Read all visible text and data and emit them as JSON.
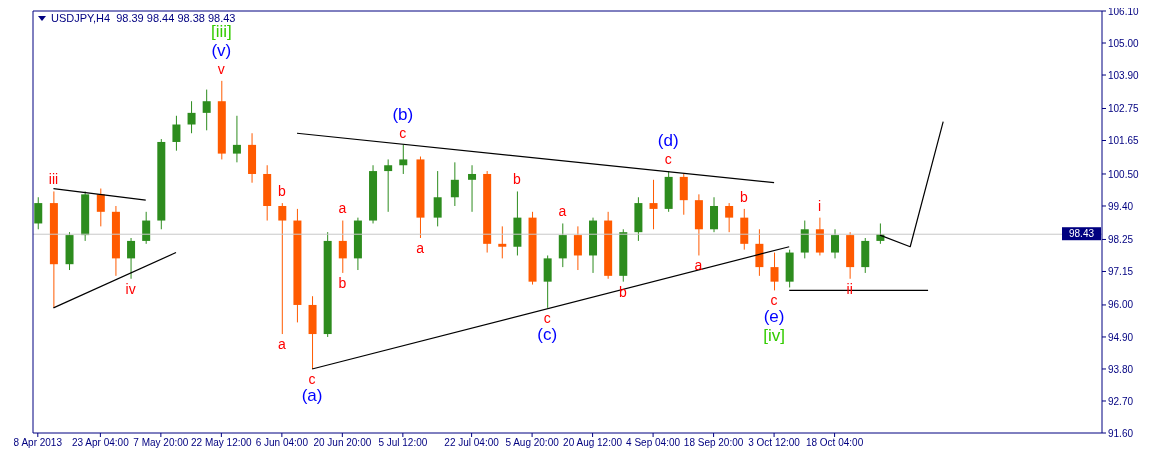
{
  "chart_data": {
    "type": "candlestick",
    "title": "USDJPY,H4  98.39 98.44 98.38 98.43",
    "x": [
      "2013-04-08T00:00",
      "2013-04-11T19:00",
      "2013-04-15T14:00",
      "2013-04-19T09:00",
      "2013-04-23T04:00",
      "2013-04-26T20:00",
      "2013-04-30T12:00",
      "2013-05-04T04:00",
      "2013-05-07T20:00",
      "2013-05-11T12:00",
      "2013-05-15T04:00",
      "2013-05-18T20:00",
      "2013-05-22T12:00",
      "2013-05-26T04:00",
      "2013-05-29T20:00",
      "2013-06-02T12:00",
      "2013-06-06T04:00",
      "2013-06-09T20:00",
      "2013-06-13T12:00",
      "2013-06-17T04:00",
      "2013-06-20T20:00",
      "2013-06-24T12:00",
      "2013-06-28T04:00",
      "2013-07-01T20:00",
      "2013-07-05T12:00",
      "2013-07-09T16:00",
      "2013-07-13T20:00",
      "2013-07-18T00:00",
      "2013-07-22T04:00",
      "2013-07-25T20:00",
      "2013-07-29T12:00",
      "2013-08-02T04:00",
      "2013-08-05T20:00",
      "2013-08-09T12:00",
      "2013-08-13T04:00",
      "2013-08-16T20:00",
      "2013-08-20T12:00",
      "2013-08-24T04:00",
      "2013-08-27T20:00",
      "2013-08-31T12:00",
      "2013-09-04T04:00",
      "2013-09-07T20:00",
      "2013-09-11T12:00",
      "2013-09-15T04:00",
      "2013-09-18T20:00",
      "2013-09-22T12:00",
      "2013-09-26T04:00",
      "2013-09-29T20:00",
      "2013-10-03T12:00",
      "2013-10-07T04:00",
      "2013-10-10T20:00",
      "2013-10-14T12:00",
      "2013-10-18T04:00",
      "2013-10-21T20:00",
      "2013-10-25T12:00",
      "2013-10-29T04:00"
    ],
    "ohlc": [
      [
        98.8,
        99.7,
        98.6,
        99.5
      ],
      [
        99.5,
        99.9,
        95.9,
        97.4
      ],
      [
        97.4,
        98.5,
        97.2,
        98.4
      ],
      [
        98.4,
        99.9,
        98.2,
        99.8
      ],
      [
        99.8,
        100.0,
        98.7,
        99.2
      ],
      [
        99.2,
        99.4,
        97.0,
        97.6
      ],
      [
        97.6,
        98.3,
        96.9,
        98.2
      ],
      [
        98.2,
        99.2,
        98.1,
        98.9
      ],
      [
        98.9,
        101.7,
        98.6,
        101.6
      ],
      [
        101.6,
        102.5,
        101.3,
        102.2
      ],
      [
        102.2,
        103.0,
        101.9,
        102.6
      ],
      [
        102.6,
        103.4,
        102.0,
        103.0
      ],
      [
        103.0,
        103.7,
        101.0,
        101.2
      ],
      [
        101.2,
        102.5,
        100.9,
        101.5
      ],
      [
        101.5,
        101.9,
        100.2,
        100.5
      ],
      [
        100.5,
        100.8,
        98.9,
        99.4
      ],
      [
        99.4,
        99.5,
        95.0,
        98.9
      ],
      [
        98.9,
        99.3,
        95.4,
        96.0
      ],
      [
        96.0,
        96.3,
        93.8,
        95.0
      ],
      [
        95.0,
        98.5,
        94.9,
        98.2
      ],
      [
        98.2,
        98.9,
        97.1,
        97.6
      ],
      [
        97.6,
        99.0,
        97.2,
        98.9
      ],
      [
        98.9,
        100.8,
        98.8,
        100.6
      ],
      [
        100.6,
        101.0,
        99.2,
        100.8
      ],
      [
        100.8,
        101.5,
        100.5,
        101.0
      ],
      [
        101.0,
        101.1,
        98.3,
        99.0
      ],
      [
        99.0,
        100.6,
        98.7,
        99.7
      ],
      [
        99.7,
        100.9,
        99.4,
        100.3
      ],
      [
        100.3,
        100.8,
        99.2,
        100.5
      ],
      [
        100.5,
        100.6,
        97.8,
        98.1
      ],
      [
        98.1,
        98.7,
        97.6,
        98.0
      ],
      [
        98.0,
        99.9,
        97.7,
        99.0
      ],
      [
        99.0,
        99.2,
        96.7,
        96.8
      ],
      [
        96.8,
        97.7,
        95.9,
        97.6
      ],
      [
        97.6,
        98.8,
        97.3,
        98.4
      ],
      [
        98.4,
        98.7,
        97.2,
        97.7
      ],
      [
        97.7,
        99.0,
        97.1,
        98.9
      ],
      [
        98.9,
        99.2,
        96.9,
        97.0
      ],
      [
        97.0,
        98.6,
        96.8,
        98.5
      ],
      [
        98.5,
        99.7,
        98.2,
        99.5
      ],
      [
        99.5,
        100.3,
        98.6,
        99.3
      ],
      [
        99.3,
        100.6,
        99.2,
        100.4
      ],
      [
        100.4,
        100.5,
        99.1,
        99.6
      ],
      [
        99.6,
        99.8,
        97.7,
        98.6
      ],
      [
        98.6,
        99.7,
        98.5,
        99.4
      ],
      [
        99.4,
        99.5,
        98.5,
        99.0
      ],
      [
        99.0,
        99.3,
        97.9,
        98.1
      ],
      [
        98.1,
        98.6,
        97.0,
        97.3
      ],
      [
        97.3,
        97.8,
        96.5,
        96.8
      ],
      [
        96.8,
        97.9,
        96.6,
        97.8
      ],
      [
        97.8,
        98.9,
        97.6,
        98.6
      ],
      [
        98.6,
        99.0,
        97.7,
        97.8
      ],
      [
        97.8,
        98.6,
        97.6,
        98.4
      ],
      [
        98.4,
        98.5,
        96.9,
        97.3
      ],
      [
        97.3,
        98.3,
        97.1,
        98.2
      ],
      [
        98.2,
        98.8,
        98.1,
        98.43
      ]
    ],
    "colors": [
      "#2d8c1e",
      "#ff5a00",
      "#2d8c1e",
      "#2d8c1e",
      "#ff5a00",
      "#ff5a00",
      "#2d8c1e",
      "#2d8c1e",
      "#2d8c1e",
      "#2d8c1e",
      "#2d8c1e",
      "#2d8c1e",
      "#ff5a00",
      "#2d8c1e",
      "#ff5a00",
      "#ff5a00",
      "#ff5a00",
      "#ff5a00",
      "#ff5a00",
      "#2d8c1e",
      "#ff5a00",
      "#2d8c1e",
      "#2d8c1e",
      "#2d8c1e",
      "#2d8c1e",
      "#ff5a00",
      "#2d8c1e",
      "#2d8c1e",
      "#2d8c1e",
      "#ff5a00",
      "#ff5a00",
      "#2d8c1e",
      "#ff5a00",
      "#2d8c1e",
      "#2d8c1e",
      "#ff5a00",
      "#2d8c1e",
      "#ff5a00",
      "#2d8c1e",
      "#2d8c1e",
      "#ff5a00",
      "#2d8c1e",
      "#ff5a00",
      "#ff5a00",
      "#2d8c1e",
      "#ff5a00",
      "#ff5a00",
      "#ff5a00",
      "#ff5a00",
      "#2d8c1e",
      "#2d8c1e",
      "#ff5a00",
      "#2d8c1e",
      "#ff5a00",
      "#2d8c1e",
      "#2d8c1e"
    ],
    "xlim": [
      "2013-04-06T20:00",
      "2013-12-22T00:00"
    ],
    "xticks": [
      {
        "value": "2013-04-08T00:00",
        "label": "8 Apr 2013"
      },
      {
        "value": "2013-04-23T04:00",
        "label": "23 Apr 04:00"
      },
      {
        "value": "2013-05-07T20:00",
        "label": "7 May 20:00"
      },
      {
        "value": "2013-05-22T12:00",
        "label": "22 May 12:00"
      },
      {
        "value": "2013-06-06T04:00",
        "label": "6 Jun 04:00"
      },
      {
        "value": "2013-06-20T20:00",
        "label": "20 Jun 20:00"
      },
      {
        "value": "2013-07-05T12:00",
        "label": "5 Jul 12:00"
      },
      {
        "value": "2013-07-22T04:00",
        "label": "22 Jul 04:00"
      },
      {
        "value": "2013-08-05T20:00",
        "label": "5 Aug 20:00"
      },
      {
        "value": "2013-08-20T12:00",
        "label": "20 Aug 12:00"
      },
      {
        "value": "2013-09-04T04:00",
        "label": "4 Sep 04:00"
      },
      {
        "value": "2013-09-18T20:00",
        "label": "18 Sep 20:00"
      },
      {
        "value": "2013-10-03T12:00",
        "label": "3 Oct 12:00"
      },
      {
        "value": "2013-10-18T04:00",
        "label": "18 Oct 04:00"
      }
    ],
    "ylim": [
      91.6,
      106.1
    ],
    "yticks": [
      {
        "value": 91.6,
        "label": "91.60"
      },
      {
        "value": 92.7,
        "label": "92.70"
      },
      {
        "value": 93.8,
        "label": "93.80"
      },
      {
        "value": 94.9,
        "label": "94.90"
      },
      {
        "value": 96,
        "label": "96.00"
      },
      {
        "value": 97.15,
        "label": "97.15"
      },
      {
        "value": 98.25,
        "label": "98.25"
      },
      {
        "value": 99.4,
        "label": "99.40"
      },
      {
        "value": 100.5,
        "label": "100.50"
      },
      {
        "value": 101.65,
        "label": "101.65"
      },
      {
        "value": 102.75,
        "label": "102.75"
      },
      {
        "value": 103.9,
        "label": "103.90"
      },
      {
        "value": 105,
        "label": "105.00"
      },
      {
        "value": 106.1,
        "label": "106.10"
      }
    ],
    "series": [
      {
        "type": "line",
        "color": "#000000",
        "x": [
          "2013-04-11T19:00",
          "2013-05-04T04:00"
        ],
        "values": [
          100.0,
          99.6
        ]
      },
      {
        "type": "line",
        "color": "#000000",
        "x": [
          "2013-04-11T19:00",
          "2013-05-11T12:00"
        ],
        "values": [
          95.9,
          97.8
        ]
      },
      {
        "type": "line",
        "color": "#000000",
        "x": [
          "2013-06-09T20:00",
          "2013-10-03T12:00"
        ],
        "values": [
          101.9,
          100.2
        ]
      },
      {
        "type": "line",
        "color": "#000000",
        "x": [
          "2013-06-13T12:00",
          "2013-10-07T04:00"
        ],
        "values": [
          93.8,
          98.0
        ]
      },
      {
        "type": "line",
        "color": "#000000",
        "x": [
          "2013-10-07T04:00",
          "2013-11-09T20:00"
        ],
        "values": [
          96.5,
          96.5
        ]
      },
      {
        "type": "line",
        "color": "#000000",
        "x": [
          "2013-10-29T04:00",
          "2013-11-05T12:00",
          "2013-11-13T12:00"
        ],
        "values": [
          98.4,
          98.0,
          102.3
        ]
      }
    ],
    "ref_lines": [
      {
        "axis": "y",
        "value": 98.43,
        "label": "98.43",
        "color": "#c8c8c8"
      }
    ],
    "annotations": [
      {
        "text": "iii",
        "x": "2013-04-11T19:00",
        "y": 99.9
      },
      {
        "text": "iv",
        "x": "2013-04-30T12:00",
        "y": 96.9
      },
      {
        "text": "v",
        "x": "2013-05-22T12:00",
        "y": 103.7
      },
      {
        "text": "(v)",
        "x": "2013-05-22T12:00",
        "y": 103.7
      },
      {
        "text": "[iii]",
        "x": "2013-05-22T12:00",
        "y": 103.7
      },
      {
        "text": "b",
        "x": "2013-06-06T04:00",
        "y": 99.5
      },
      {
        "text": "a",
        "x": "2013-06-06T04:00",
        "y": 95.0
      },
      {
        "text": "c",
        "x": "2013-06-13T12:00",
        "y": 93.8
      },
      {
        "text": "(a)",
        "x": "2013-06-13T12:00",
        "y": 93.8
      },
      {
        "text": "a",
        "x": "2013-06-20T20:00",
        "y": 98.9
      },
      {
        "text": "b",
        "x": "2013-06-20T20:00",
        "y": 97.1
      },
      {
        "text": "c",
        "x": "2013-07-05T12:00",
        "y": 101.5
      },
      {
        "text": "(b)",
        "x": "2013-07-05T12:00",
        "y": 101.5
      },
      {
        "text": "a",
        "x": "2013-07-09T16:00",
        "y": 98.3
      },
      {
        "text": "b",
        "x": "2013-08-02T04:00",
        "y": 99.9
      },
      {
        "text": "c",
        "x": "2013-08-09T12:00",
        "y": 95.9
      },
      {
        "text": "(c)",
        "x": "2013-08-09T12:00",
        "y": 95.9
      },
      {
        "text": "a",
        "x": "2013-08-13T04:00",
        "y": 98.8
      },
      {
        "text": "b",
        "x": "2013-08-27T20:00",
        "y": 96.8
      },
      {
        "text": "c",
        "x": "2013-09-07T20:00",
        "y": 100.6
      },
      {
        "text": "(d)",
        "x": "2013-09-07T20:00",
        "y": 100.6
      },
      {
        "text": "a",
        "x": "2013-09-15T04:00",
        "y": 97.7
      },
      {
        "text": "b",
        "x": "2013-09-26T04:00",
        "y": 99.3
      },
      {
        "text": "c",
        "x": "2013-10-03T12:00",
        "y": 96.5
      },
      {
        "text": "(e)",
        "x": "2013-10-03T12:00",
        "y": 96.5
      },
      {
        "text": "[iv]",
        "x": "2013-10-03T12:00",
        "y": 96.5
      },
      {
        "text": "i",
        "x": "2013-10-14T12:00",
        "y": 99.0
      },
      {
        "text": "ii",
        "x": "2013-10-21T20:00",
        "y": 96.9
      }
    ]
  }
}
